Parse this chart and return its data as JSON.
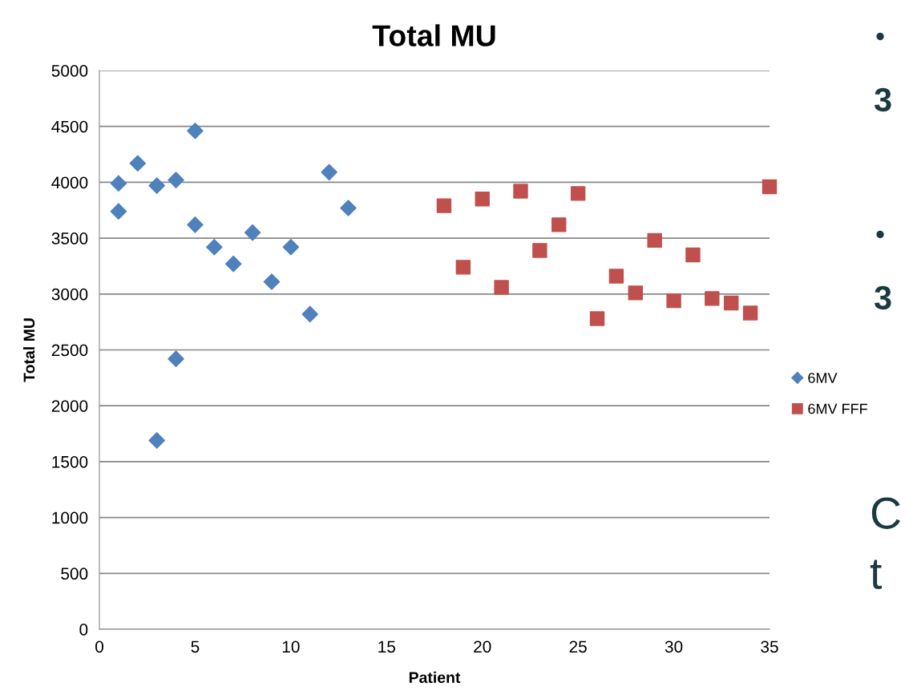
{
  "chart_data": {
    "type": "scatter",
    "title": "Total MU",
    "xlabel": "Patient",
    "ylabel": "Total MU",
    "xlim": [
      0,
      35
    ],
    "xticks": [
      0,
      5,
      10,
      15,
      20,
      25,
      30,
      35
    ],
    "ylim": [
      0,
      5000
    ],
    "yticks": [
      0,
      500,
      1000,
      1500,
      2000,
      2500,
      3000,
      3500,
      4000,
      4500,
      5000
    ],
    "grid": "y",
    "legend": "right",
    "series": [
      {
        "name": "6MV",
        "color": "#4f81bd",
        "marker": "diamond",
        "x": [
          1,
          1,
          2,
          3,
          3,
          4,
          4,
          5,
          5,
          6,
          7,
          8,
          9,
          10,
          11,
          12,
          13
        ],
        "values": [
          3990,
          3740,
          4170,
          3970,
          1690,
          4020,
          2420,
          4460,
          3620,
          3420,
          3270,
          3550,
          3110,
          3420,
          2820,
          4090,
          3770
        ]
      },
      {
        "name": "6MV FFF",
        "color": "#c0504d",
        "marker": "square",
        "x": [
          18,
          19,
          20,
          21,
          22,
          23,
          24,
          25,
          26,
          27,
          28,
          29,
          30,
          31,
          32,
          33,
          34,
          35
        ],
        "values": [
          3790,
          3240,
          3850,
          3060,
          3920,
          3390,
          3620,
          3900,
          2780,
          3160,
          3010,
          3480,
          2940,
          3350,
          2960,
          2920,
          2830,
          3960
        ]
      }
    ],
    "annotations": [
      "•",
      "3",
      "•",
      "3",
      "C",
      "t"
    ]
  }
}
